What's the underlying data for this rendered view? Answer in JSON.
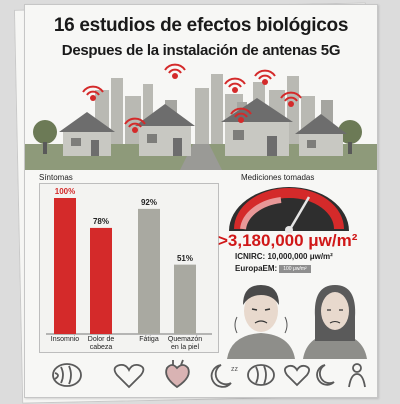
{
  "title": "16 estudios de efectos biológicos",
  "subtitle": "Despues de la instalación de antenas 5G",
  "symptoms": {
    "label": "Síntomas",
    "chart_data": {
      "type": "bar",
      "categories": [
        "Insomnio",
        "Dolor de cabeza",
        "Fátiga",
        "Quemazón en la piel"
      ],
      "values": [
        100,
        78,
        92,
        51
      ],
      "value_labels": [
        "100%",
        "78%",
        "92%",
        "51%"
      ],
      "colors": [
        "#d42a2a",
        "#d42a2a",
        "#a9a9a1",
        "#a9a9a1"
      ],
      "label_colors": [
        "#d42a2a",
        "#222222",
        "#222222",
        "#222222"
      ]
    }
  },
  "measurements": {
    "label": "Mediciones tomadas",
    "value": ">3,180,000 μw/m²",
    "icnirc": "ICNIRC: 10,000,000 μw/m²",
    "europaem_label": "EuropaEM:",
    "europaem_value": "100 μw/m²"
  },
  "bottom_icons": [
    "brain-icon",
    "heart-icon",
    "anatomical-heart-icon",
    "moon-sleep-icon",
    "brain-icon",
    "heart-icon",
    "moon-sleep-icon",
    "person-icon"
  ]
}
